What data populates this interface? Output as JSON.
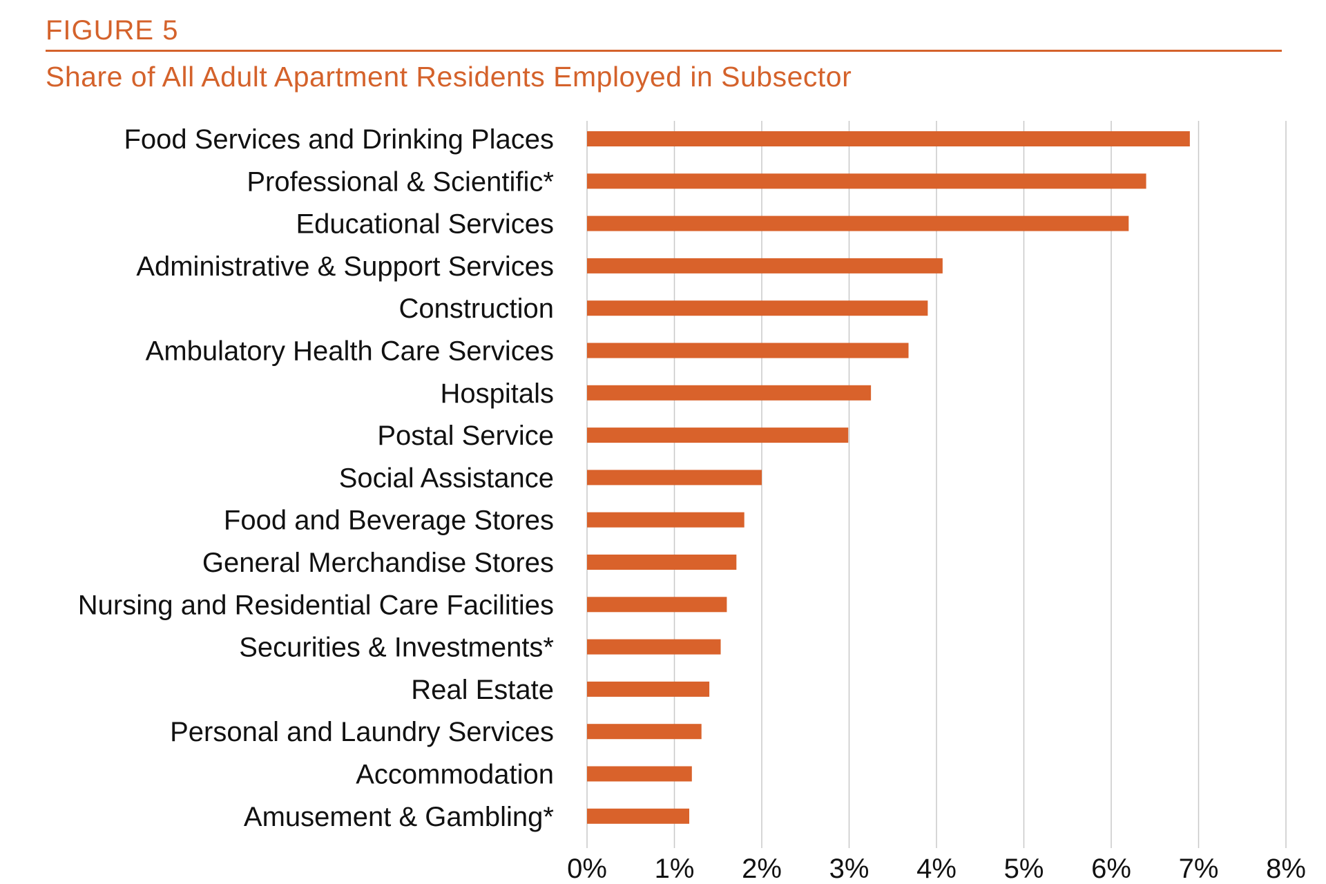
{
  "figure": {
    "label": "FIGURE 5",
    "title": "Share of All Adult Apartment Residents Employed in Subsector"
  },
  "colors": {
    "accent": "#d4622b",
    "bar": "#d9622b",
    "grid": "#c8c8c8",
    "text": "#111111"
  },
  "chart_data": {
    "type": "bar",
    "orientation": "horizontal",
    "title": "Share of All Adult Apartment Residents Employed in Subsector",
    "xlabel": "",
    "ylabel": "",
    "categories": [
      "Food Services and Drinking Places",
      "Professional & Scientific*",
      "Educational Services",
      "Administrative & Support Services",
      "Construction",
      "Ambulatory Health Care Services",
      "Hospitals",
      "Postal Service",
      "Social Assistance",
      "Food and Beverage Stores",
      "General Merchandise Stores",
      "Nursing and Residential Care Facilities",
      "Securities & Investments*",
      "Real Estate",
      "Personal and Laundry Services",
      "Accommodation",
      "Amusement & Gambling*"
    ],
    "values": [
      6.9,
      6.4,
      6.2,
      4.07,
      3.9,
      3.68,
      3.25,
      2.99,
      2.0,
      1.8,
      1.71,
      1.6,
      1.53,
      1.4,
      1.31,
      1.2,
      1.17
    ],
    "value_unit": "%",
    "xlim": [
      0,
      8
    ],
    "xticks": [
      "0%",
      "1%",
      "2%",
      "3%",
      "4%",
      "5%",
      "6%",
      "7%",
      "8%"
    ],
    "grid": "vertical",
    "legend": "none"
  }
}
